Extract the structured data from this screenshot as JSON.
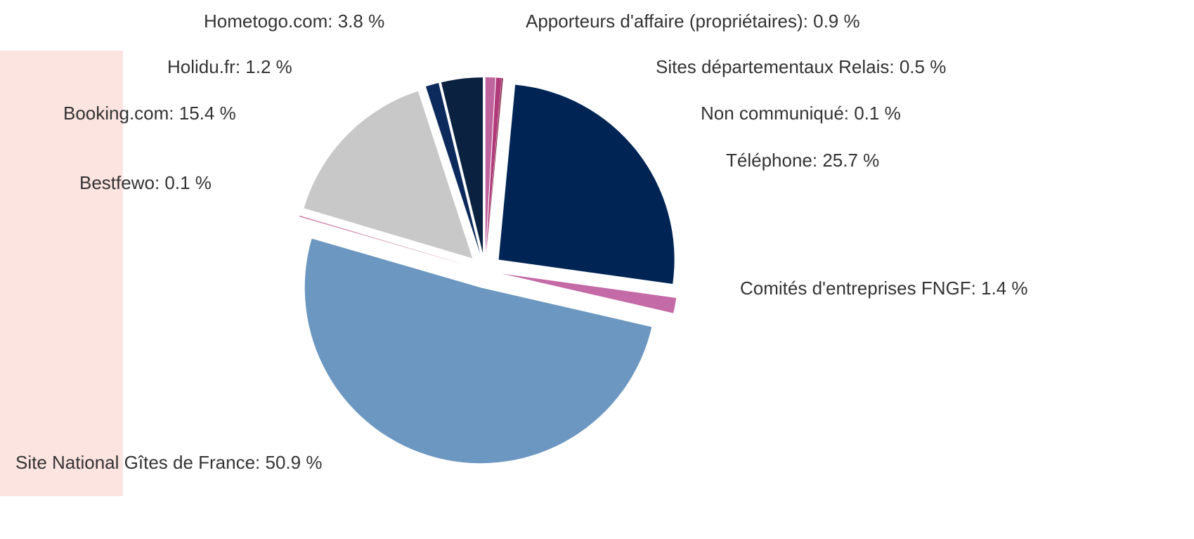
{
  "chart_data": {
    "type": "pie",
    "value_labels": [
      "Apporteurs d'affaire (propriétaires): 0.9 %",
      "Sites départementaux Relais: 0.5 %",
      "Non communiqué: 0.1 %",
      "Téléphone: 25.7 %",
      "Comités d'entreprises FNGF: 1.4 %",
      "Site National Gîtes de France: 50.9 %",
      "Bestfewo: 0.1 %",
      "Booking.com: 15.4 %",
      "Holidu.fr: 1.2 %",
      "Hometogo.com: 3.8 %"
    ],
    "values": [
      0.9,
      0.5,
      0.1,
      25.7,
      1.4,
      50.9,
      0.1,
      15.4,
      1.2,
      3.8
    ],
    "colors": [
      "#c0649e",
      "#b03a7a",
      "#7a1a3a",
      "#002554",
      "#c46aa6",
      "#6b97c1",
      "#d080a8",
      "#c8c8c8",
      "#0d2a5c",
      "#0a2240"
    ]
  }
}
